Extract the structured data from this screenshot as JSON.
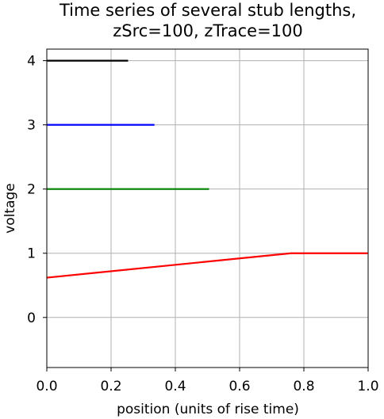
{
  "chart_data": {
    "type": "line",
    "title_lines": [
      "Time series of several stub lengths,",
      "zSrc=100, zTrace=100"
    ],
    "xlabel": "position (units of rise time)",
    "ylabel": "voltage",
    "xlim": [
      0.0,
      1.0
    ],
    "ylim": [
      -0.78,
      4.18
    ],
    "x_ticks": [
      "0.0",
      "0.2",
      "0.4",
      "0.6",
      "0.8",
      "1.0"
    ],
    "x_tick_values": [
      0.0,
      0.2,
      0.4,
      0.6,
      0.8,
      1.0
    ],
    "y_ticks": [
      "0",
      "1",
      "2",
      "3",
      "4"
    ],
    "y_tick_values": [
      0,
      1,
      2,
      3,
      4
    ],
    "grid": true,
    "series": [
      {
        "color": "#ff0000",
        "x": [
          0.0,
          0.76,
          1.0
        ],
        "y": [
          0.62,
          1.0,
          1.0
        ]
      },
      {
        "color": "#008000",
        "x": [
          0.0,
          0.505
        ],
        "y": [
          2.0,
          2.0
        ]
      },
      {
        "color": "#0000ff",
        "x": [
          0.0,
          0.335
        ],
        "y": [
          3.0,
          3.0
        ]
      },
      {
        "color": "#000000",
        "x": [
          0.0,
          0.253
        ],
        "y": [
          4.0,
          4.0
        ]
      }
    ]
  }
}
